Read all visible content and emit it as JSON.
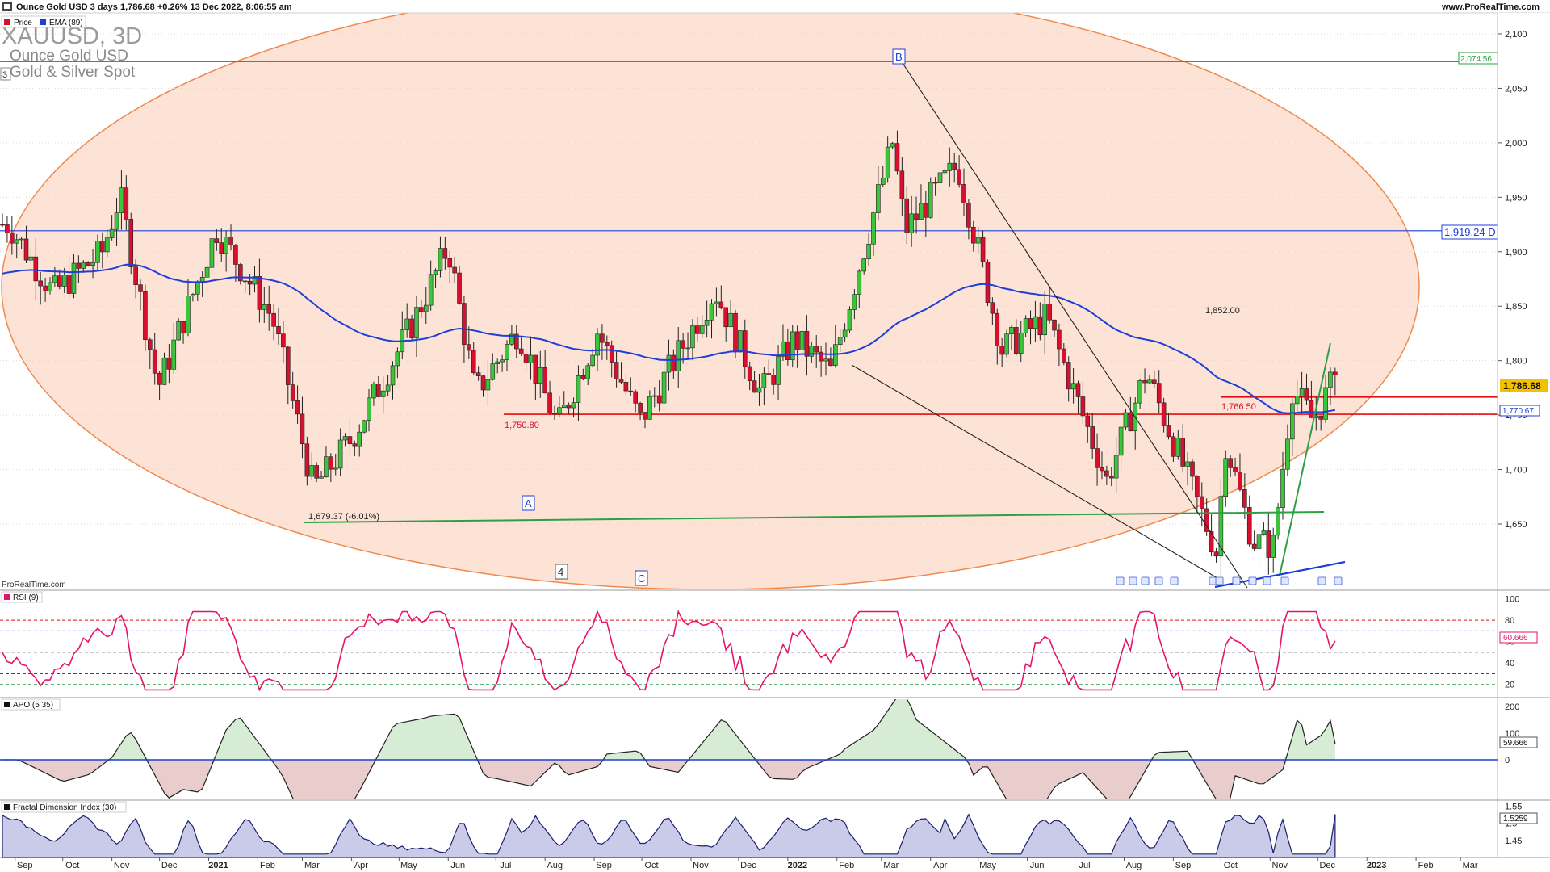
{
  "header": {
    "title": "Ounce Gold USD 3 days 1,786.68 +0.26% 13 Dec 2022, 8:06:55 am",
    "site": "www.ProRealTime.com"
  },
  "main_panel": {
    "legend": [
      {
        "label": "Price",
        "color": "#d8102f"
      },
      {
        "label": "EMA (89)",
        "color": "#1f3fd6"
      }
    ],
    "symbol": "XAUUSD, 3D",
    "instrument": "Ounce Gold USD",
    "subtitle": "Gold & Silver Spot",
    "pane_number": "3",
    "watermark": "ProRealTime.com",
    "last_price": "1,786.68",
    "ema_value": "1,770.67",
    "annotations": {
      "level_2074": "2,074.56",
      "level_1919": "1,919.24 D",
      "level_1852": "1,852.00",
      "level_1766": "1,766.50",
      "level_1750": "1,750.80",
      "low_note": "1,679.37 (-6.01%)",
      "wave_a": "A",
      "wave_b": "B",
      "wave_c": "C",
      "wave_4": "4"
    }
  },
  "rsi_panel": {
    "label": "RSI (9)",
    "value": "60.666"
  },
  "apo_panel": {
    "label": "APO (5 35)",
    "value": "59.666"
  },
  "fdi_panel": {
    "label": "Fractal Dimension Index (30)",
    "value": "1.5259"
  },
  "chart_data": [
    {
      "type": "candlestick",
      "title": "XAUUSD, 3D",
      "y_range": [
        1600,
        2110
      ],
      "y_ticks": [
        "2,100",
        "2,050",
        "2,000",
        "1,950",
        "1,900",
        "1,850",
        "1,800",
        "1,750",
        "1,700",
        "1,650"
      ],
      "x_ticks": [
        "Sep",
        "Oct",
        "Nov",
        "Dec",
        "2021",
        "Feb",
        "Mar",
        "Apr",
        "May",
        "Jun",
        "Jul",
        "Aug",
        "Sep",
        "Oct",
        "Nov",
        "Dec",
        "2022",
        "Feb",
        "Mar",
        "Apr",
        "May",
        "Jun",
        "Jul",
        "Aug",
        "Sep",
        "Oct",
        "Nov",
        "Dec",
        "2023",
        "Feb",
        "Mar"
      ],
      "key_levels": [
        2074.56,
        1919.24,
        1852.0,
        1766.5,
        1750.8
      ],
      "close_anchors": [
        {
          "date": "2020-08-28",
          "close": 1925
        },
        {
          "date": "2020-09-25",
          "close": 1862
        },
        {
          "date": "2020-10-26",
          "close": 1900
        },
        {
          "date": "2020-11-06",
          "close": 1952
        },
        {
          "date": "2020-11-30",
          "close": 1775
        },
        {
          "date": "2021-01-06",
          "close": 1920
        },
        {
          "date": "2021-02-10",
          "close": 1840
        },
        {
          "date": "2021-03-08",
          "close": 1683
        },
        {
          "date": "2021-04-01",
          "close": 1728
        },
        {
          "date": "2021-05-10",
          "close": 1836
        },
        {
          "date": "2021-06-01",
          "close": 1905
        },
        {
          "date": "2021-06-18",
          "close": 1770
        },
        {
          "date": "2021-07-15",
          "close": 1828
        },
        {
          "date": "2021-08-09",
          "close": 1740
        },
        {
          "date": "2021-09-03",
          "close": 1827
        },
        {
          "date": "2021-09-30",
          "close": 1745
        },
        {
          "date": "2021-11-16",
          "close": 1865
        },
        {
          "date": "2021-12-15",
          "close": 1770
        },
        {
          "date": "2022-01-05",
          "close": 1820
        },
        {
          "date": "2022-01-28",
          "close": 1790
        },
        {
          "date": "2022-03-08",
          "close": 2000
        },
        {
          "date": "2022-03-16",
          "close": 1920
        },
        {
          "date": "2022-04-18",
          "close": 1980
        },
        {
          "date": "2022-05-16",
          "close": 1810
        },
        {
          "date": "2022-06-13",
          "close": 1840
        },
        {
          "date": "2022-07-21",
          "close": 1690
        },
        {
          "date": "2022-08-15",
          "close": 1790
        },
        {
          "date": "2022-09-28",
          "close": 1625
        },
        {
          "date": "2022-10-04",
          "close": 1725
        },
        {
          "date": "2022-10-21",
          "close": 1635
        },
        {
          "date": "2022-11-03",
          "close": 1630
        },
        {
          "date": "2022-11-15",
          "close": 1775
        },
        {
          "date": "2022-11-28",
          "close": 1745
        },
        {
          "date": "2022-12-13",
          "close": 1786.68
        }
      ]
    },
    {
      "type": "line",
      "title": "RSI (9)",
      "y_ticks": [
        "100",
        "80",
        "60",
        "40",
        "20"
      ],
      "levels": [
        80,
        70,
        50,
        30,
        20
      ],
      "last": 60.666
    },
    {
      "type": "area",
      "title": "APO (5 35)",
      "y_ticks": [
        "200",
        "100",
        "0"
      ],
      "last": 59.666
    },
    {
      "type": "area",
      "title": "Fractal Dimension Index (30)",
      "y_ticks": [
        "1.55",
        "1.5",
        "1.45"
      ],
      "last": 1.5259
    }
  ]
}
